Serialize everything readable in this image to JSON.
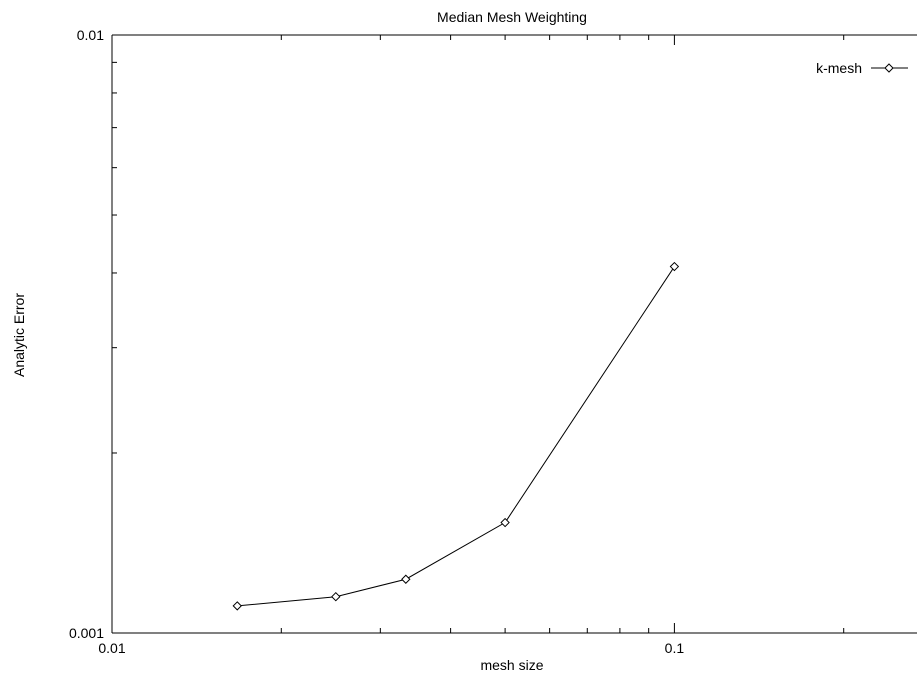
{
  "chart_data": {
    "type": "line",
    "title": "Median Mesh Weighting",
    "xlabel": "mesh size",
    "ylabel": "Analytic Error",
    "x_scale": "log",
    "y_scale": "log",
    "xlim": [
      0.01,
      0.27
    ],
    "ylim": [
      0.001,
      0.01
    ],
    "x_tick_labels": [
      {
        "value": 0.01,
        "label": "0.01"
      },
      {
        "value": 0.1,
        "label": "0.1"
      }
    ],
    "y_tick_labels": [
      {
        "value": 0.001,
        "label": "0.001"
      },
      {
        "value": 0.01,
        "label": "0.01"
      }
    ],
    "grid": false,
    "legend_position": "top-right",
    "series": [
      {
        "name": "k-mesh",
        "marker": "diamond",
        "color": "#000000",
        "x": [
          0.0167,
          0.025,
          0.0333,
          0.05,
          0.1
        ],
        "y": [
          0.00111,
          0.00115,
          0.00123,
          0.00153,
          0.0041
        ]
      }
    ]
  }
}
